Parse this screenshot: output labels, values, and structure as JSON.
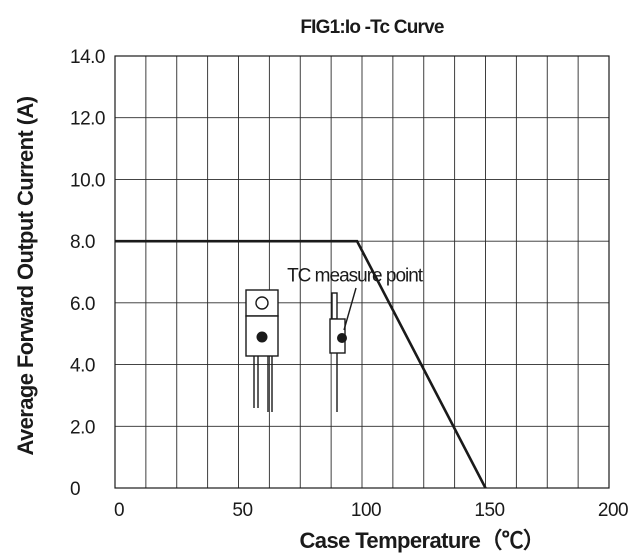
{
  "chart_data": {
    "type": "line",
    "title": "FIG1:Io -Tc Curve",
    "xlabel": "Case Temperature（℃）",
    "ylabel": "Average Forward Output Current (A)",
    "xlim": [
      0,
      200
    ],
    "ylim": [
      0,
      14
    ],
    "x_ticks": [
      "0",
      "50",
      "100",
      "150",
      "200"
    ],
    "y_ticks": [
      "0",
      "2.0",
      "4.0",
      "6.0",
      "8.0",
      "10.0",
      "12.0",
      "14.0"
    ],
    "x_minor_step": 12.5,
    "y_minor_step": 2,
    "grid": true,
    "series": [
      {
        "x": [
          0,
          98,
          150
        ],
        "y": [
          8,
          8,
          0
        ]
      }
    ],
    "annotations": [
      {
        "text": "TC measure point",
        "x": 97,
        "y": 6.7
      }
    ],
    "colors": {
      "line": "#1a1a1a",
      "grid": "#2a2a2a",
      "background": "#ffffff"
    },
    "icons": [
      "to220-package-front-icon",
      "to220-package-side-icon"
    ]
  }
}
